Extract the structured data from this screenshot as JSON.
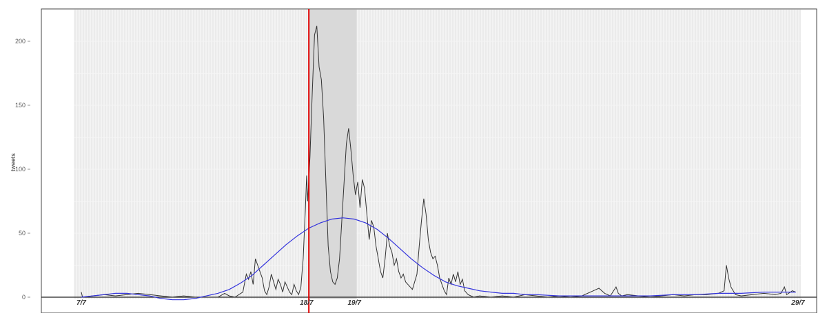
{
  "chart_data": {
    "type": "line",
    "title": "",
    "xlabel": "",
    "ylabel": "tweets",
    "y_ticks": [
      "0",
      "50",
      "100",
      "150",
      "200"
    ],
    "y_tick_values": [
      0,
      50,
      100,
      150,
      200
    ],
    "ylim": [
      -10,
      225
    ],
    "x_ticks": [
      "7/7",
      "18/7",
      "19/7",
      "29/7"
    ],
    "x_tick_values": [
      0,
      1.98,
      2.4,
      6.3
    ],
    "xlim": [
      -0.3,
      6.4
    ],
    "grid": true,
    "highlight_band": {
      "x_start": 2.0,
      "x_end": 2.42
    },
    "event_line": {
      "x": 2.0,
      "color": "#e00000"
    },
    "colors": {
      "series": "#333333",
      "smooth": "#3333dd",
      "band": "#d9d9d9",
      "panel": "#ebebeb"
    },
    "series": [
      {
        "values": [
          [
            0.0,
            4
          ],
          [
            0.01,
            0
          ],
          [
            0.1,
            1
          ],
          [
            0.2,
            2
          ],
          [
            0.3,
            1
          ],
          [
            0.4,
            2
          ],
          [
            0.5,
            3
          ],
          [
            0.6,
            2
          ],
          [
            0.7,
            1
          ],
          [
            0.8,
            0
          ],
          [
            0.9,
            1
          ],
          [
            1.0,
            0
          ],
          [
            1.1,
            0
          ],
          [
            1.2,
            0
          ],
          [
            1.26,
            3
          ],
          [
            1.3,
            1
          ],
          [
            1.35,
            0
          ],
          [
            1.42,
            4
          ],
          [
            1.45,
            18
          ],
          [
            1.47,
            14
          ],
          [
            1.49,
            20
          ],
          [
            1.51,
            10
          ],
          [
            1.53,
            30
          ],
          [
            1.55,
            25
          ],
          [
            1.57,
            20
          ],
          [
            1.59,
            15
          ],
          [
            1.61,
            5
          ],
          [
            1.63,
            2
          ],
          [
            1.65,
            8
          ],
          [
            1.67,
            18
          ],
          [
            1.69,
            12
          ],
          [
            1.71,
            6
          ],
          [
            1.73,
            14
          ],
          [
            1.75,
            10
          ],
          [
            1.77,
            4
          ],
          [
            1.79,
            12
          ],
          [
            1.81,
            8
          ],
          [
            1.83,
            4
          ],
          [
            1.85,
            2
          ],
          [
            1.87,
            10
          ],
          [
            1.89,
            5
          ],
          [
            1.91,
            2
          ],
          [
            1.93,
            8
          ],
          [
            1.95,
            30
          ],
          [
            1.97,
            70
          ],
          [
            1.98,
            95
          ],
          [
            1.99,
            75
          ],
          [
            2.01,
            110
          ],
          [
            2.03,
            160
          ],
          [
            2.05,
            205
          ],
          [
            2.07,
            212
          ],
          [
            2.09,
            180
          ],
          [
            2.11,
            170
          ],
          [
            2.13,
            140
          ],
          [
            2.15,
            90
          ],
          [
            2.17,
            40
          ],
          [
            2.19,
            20
          ],
          [
            2.21,
            12
          ],
          [
            2.23,
            10
          ],
          [
            2.25,
            15
          ],
          [
            2.27,
            30
          ],
          [
            2.29,
            60
          ],
          [
            2.31,
            90
          ],
          [
            2.33,
            120
          ],
          [
            2.35,
            132
          ],
          [
            2.37,
            115
          ],
          [
            2.39,
            95
          ],
          [
            2.41,
            80
          ],
          [
            2.43,
            90
          ],
          [
            2.45,
            70
          ],
          [
            2.47,
            92
          ],
          [
            2.49,
            85
          ],
          [
            2.51,
            65
          ],
          [
            2.53,
            45
          ],
          [
            2.55,
            60
          ],
          [
            2.57,
            55
          ],
          [
            2.59,
            40
          ],
          [
            2.61,
            30
          ],
          [
            2.63,
            20
          ],
          [
            2.65,
            15
          ],
          [
            2.67,
            30
          ],
          [
            2.69,
            50
          ],
          [
            2.71,
            40
          ],
          [
            2.73,
            35
          ],
          [
            2.75,
            25
          ],
          [
            2.77,
            30
          ],
          [
            2.79,
            20
          ],
          [
            2.81,
            15
          ],
          [
            2.83,
            18
          ],
          [
            2.85,
            12
          ],
          [
            2.87,
            10
          ],
          [
            2.89,
            8
          ],
          [
            2.91,
            6
          ],
          [
            2.93,
            12
          ],
          [
            2.95,
            18
          ],
          [
            2.97,
            40
          ],
          [
            2.99,
            60
          ],
          [
            3.01,
            77
          ],
          [
            3.03,
            65
          ],
          [
            3.05,
            45
          ],
          [
            3.07,
            35
          ],
          [
            3.09,
            30
          ],
          [
            3.11,
            32
          ],
          [
            3.13,
            25
          ],
          [
            3.15,
            15
          ],
          [
            3.17,
            10
          ],
          [
            3.19,
            5
          ],
          [
            3.21,
            2
          ],
          [
            3.23,
            15
          ],
          [
            3.25,
            10
          ],
          [
            3.27,
            18
          ],
          [
            3.29,
            12
          ],
          [
            3.31,
            20
          ],
          [
            3.33,
            10
          ],
          [
            3.35,
            14
          ],
          [
            3.37,
            5
          ],
          [
            3.4,
            2
          ],
          [
            3.45,
            0
          ],
          [
            3.5,
            1
          ],
          [
            3.6,
            0
          ],
          [
            3.7,
            1
          ],
          [
            3.8,
            0
          ],
          [
            3.9,
            2
          ],
          [
            4.0,
            1
          ],
          [
            4.1,
            0
          ],
          [
            4.2,
            1
          ],
          [
            4.3,
            0
          ],
          [
            4.4,
            1
          ],
          [
            4.5,
            5
          ],
          [
            4.55,
            7
          ],
          [
            4.6,
            3
          ],
          [
            4.65,
            1
          ],
          [
            4.7,
            8
          ],
          [
            4.72,
            3
          ],
          [
            4.75,
            1
          ],
          [
            4.8,
            2
          ],
          [
            4.9,
            1
          ],
          [
            5.0,
            0
          ],
          [
            5.1,
            1
          ],
          [
            5.2,
            2
          ],
          [
            5.3,
            1
          ],
          [
            5.4,
            2
          ],
          [
            5.5,
            2
          ],
          [
            5.6,
            3
          ],
          [
            5.65,
            5
          ],
          [
            5.67,
            25
          ],
          [
            5.69,
            15
          ],
          [
            5.71,
            8
          ],
          [
            5.73,
            5
          ],
          [
            5.75,
            2
          ],
          [
            5.8,
            1
          ],
          [
            5.9,
            2
          ],
          [
            6.0,
            3
          ],
          [
            6.1,
            2
          ],
          [
            6.15,
            3
          ],
          [
            6.18,
            8
          ],
          [
            6.2,
            2
          ],
          [
            6.25,
            5
          ],
          [
            6.28,
            4
          ]
        ]
      },
      {
        "values": [
          [
            0.0,
            0
          ],
          [
            0.1,
            1
          ],
          [
            0.2,
            2
          ],
          [
            0.3,
            3
          ],
          [
            0.4,
            3
          ],
          [
            0.5,
            2
          ],
          [
            0.6,
            1
          ],
          [
            0.7,
            -1
          ],
          [
            0.8,
            -2
          ],
          [
            0.9,
            -2
          ],
          [
            1.0,
            -1
          ],
          [
            1.1,
            1
          ],
          [
            1.2,
            3
          ],
          [
            1.3,
            6
          ],
          [
            1.4,
            11
          ],
          [
            1.5,
            17
          ],
          [
            1.6,
            25
          ],
          [
            1.7,
            33
          ],
          [
            1.8,
            41
          ],
          [
            1.9,
            48
          ],
          [
            2.0,
            54
          ],
          [
            2.1,
            58
          ],
          [
            2.2,
            61
          ],
          [
            2.3,
            62
          ],
          [
            2.4,
            61
          ],
          [
            2.5,
            58
          ],
          [
            2.6,
            53
          ],
          [
            2.7,
            46
          ],
          [
            2.8,
            38
          ],
          [
            2.9,
            30
          ],
          [
            3.0,
            23
          ],
          [
            3.1,
            17
          ],
          [
            3.2,
            12
          ],
          [
            3.3,
            9
          ],
          [
            3.4,
            7
          ],
          [
            3.5,
            5
          ],
          [
            3.6,
            4
          ],
          [
            3.7,
            3
          ],
          [
            3.8,
            3
          ],
          [
            3.9,
            2
          ],
          [
            4.0,
            2
          ],
          [
            4.2,
            1
          ],
          [
            4.4,
            1
          ],
          [
            4.6,
            1
          ],
          [
            4.8,
            1
          ],
          [
            5.0,
            1
          ],
          [
            5.2,
            2
          ],
          [
            5.4,
            2
          ],
          [
            5.6,
            3
          ],
          [
            5.8,
            3
          ],
          [
            6.0,
            4
          ],
          [
            6.2,
            4
          ],
          [
            6.28,
            4
          ]
        ]
      }
    ]
  }
}
